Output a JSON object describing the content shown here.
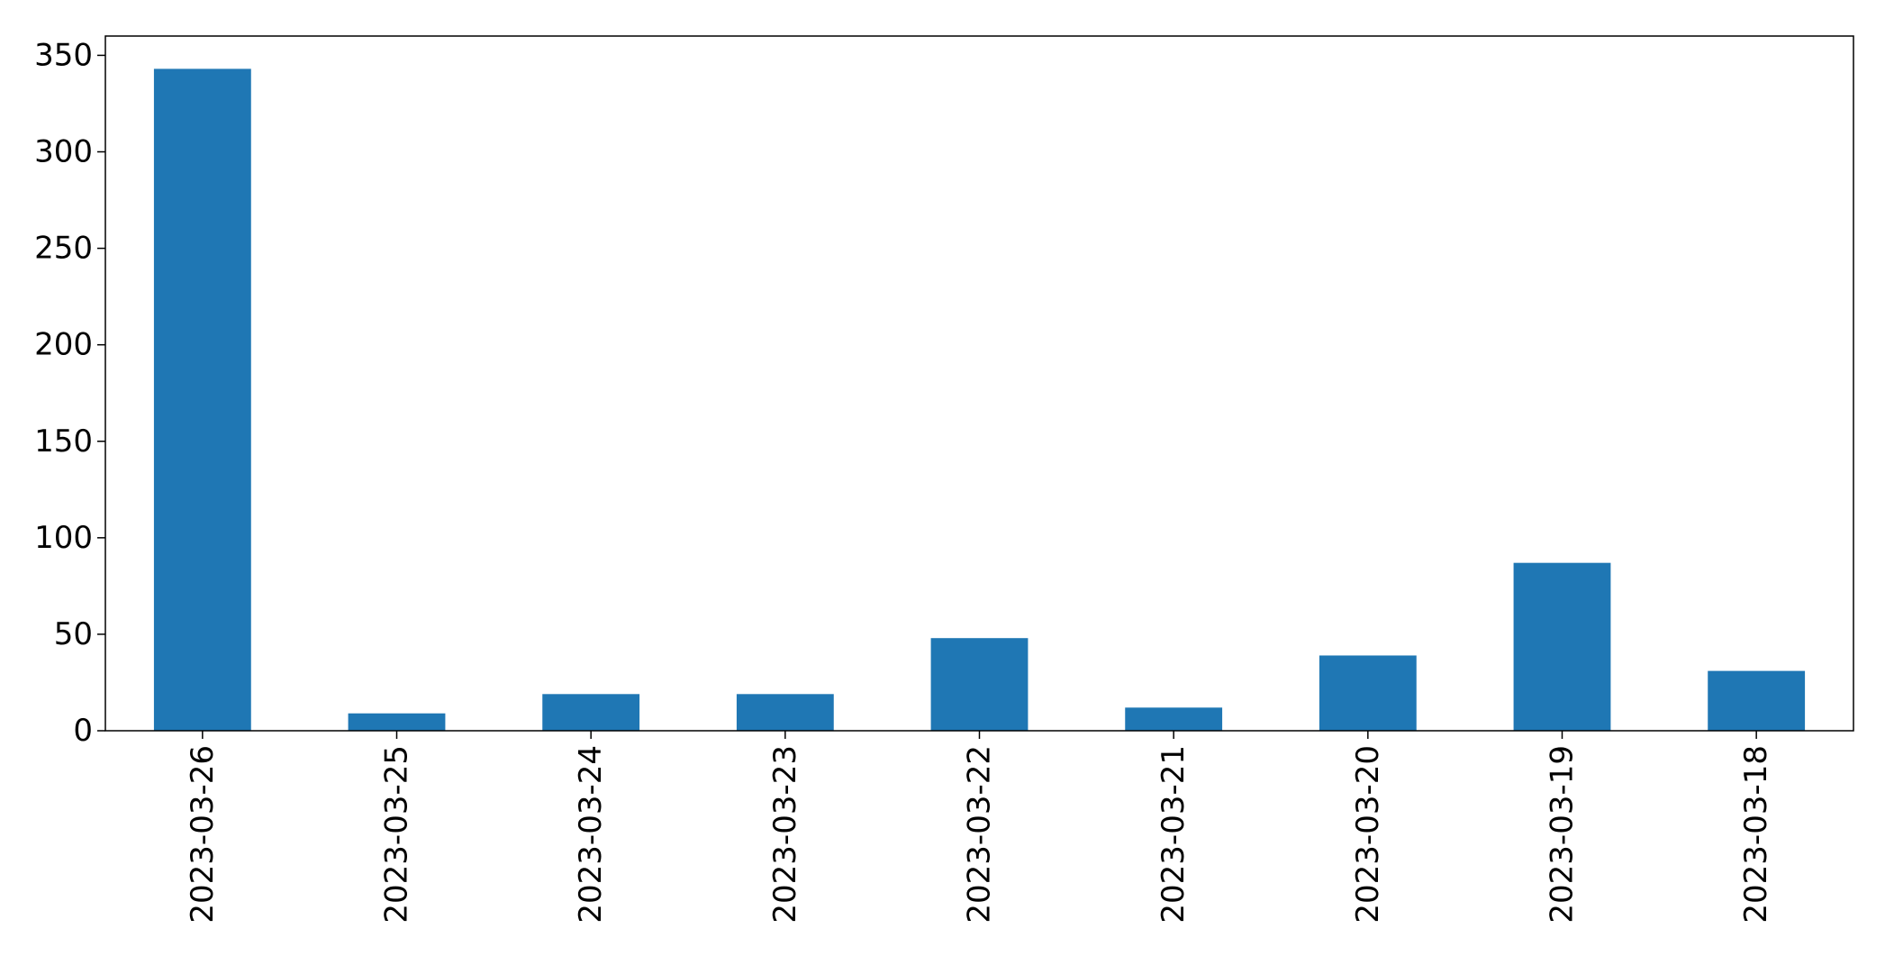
{
  "chart_data": {
    "type": "bar",
    "title": "",
    "xlabel": "",
    "ylabel": "",
    "categories": [
      "2023-03-26",
      "2023-03-25",
      "2023-03-24",
      "2023-03-23",
      "2023-03-22",
      "2023-03-21",
      "2023-03-20",
      "2023-03-19",
      "2023-03-18"
    ],
    "values": [
      343,
      9,
      19,
      19,
      48,
      12,
      39,
      87,
      31
    ],
    "ylim": [
      0,
      360
    ],
    "yticks": [
      0,
      50,
      100,
      150,
      200,
      250,
      300,
      350
    ],
    "grid": false,
    "legend": "none",
    "bar_color": "#1f77b4"
  }
}
